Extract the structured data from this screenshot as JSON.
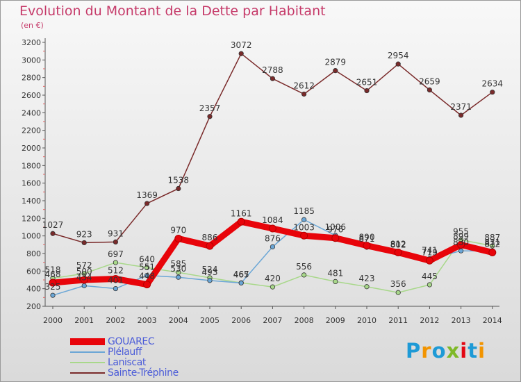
{
  "title": "Evolution du Montant de la Dette par Habitant",
  "subtitle": "(en €)",
  "logo": {
    "text": "Proxiti",
    "colors": [
      "#1e9ad6",
      "#f29400",
      "#7fb928",
      "#e30613"
    ]
  },
  "chart_data": {
    "type": "line",
    "x": [
      "2000",
      "2001",
      "2002",
      "2003",
      "2004",
      "2005",
      "2006",
      "2007",
      "2008",
      "2009",
      "2010",
      "2011",
      "2012",
      "2013",
      "2014"
    ],
    "yticks": [
      200,
      400,
      600,
      800,
      1000,
      1200,
      1400,
      1600,
      1800,
      2000,
      2200,
      2400,
      2600,
      2800,
      3000,
      3200
    ],
    "ylim": [
      200,
      3200
    ],
    "grid": false,
    "legend_position": "bottom-left",
    "series": [
      {
        "name": "Sainte-Tréphine",
        "color": "#7a2a2a",
        "width": 1.5,
        "values": [
          1027,
          923,
          931,
          1369,
          1538,
          2357,
          3072,
          2788,
          2612,
          2879,
          2651,
          2954,
          2659,
          2371,
          2634
        ],
        "labels": [
          "1027",
          "923",
          "931",
          "1369",
          "1538",
          "2357",
          "3072",
          "2788",
          "2612",
          "2879",
          "2651",
          "2954",
          "2659",
          "2371",
          "2634"
        ]
      },
      {
        "name": "Laniscat",
        "color": "#a8d88a",
        "width": 1.5,
        "values": [
          518,
          572,
          697,
          640,
          585,
          524,
          467,
          420,
          556,
          481,
          423,
          356,
          445,
          955,
          887
        ],
        "labels": [
          "518",
          "572",
          "697",
          "640",
          "585",
          "524",
          "467",
          "420",
          "556",
          "481",
          "423",
          "356",
          "445",
          "955",
          "887"
        ]
      },
      {
        "name": "Plélauff",
        "color": "#6aa6d6",
        "width": 1.5,
        "values": [
          325,
          434,
          401,
          551,
          530,
          493,
          465,
          876,
          1185,
          1006,
          871,
          802,
          741,
          830,
          831
        ],
        "labels": [
          "325",
          "434",
          "401",
          "551",
          "530",
          "493",
          "465",
          "876",
          "1185",
          "1006",
          "871",
          "802",
          "741",
          "830",
          "831"
        ]
      },
      {
        "name": "GOUAREC",
        "color": "#e8040a",
        "width": 9,
        "values": [
          468,
          500,
          512,
          448,
          970,
          886,
          1161,
          1084,
          1003,
          976,
          890,
          812,
          719,
          899,
          812
        ],
        "labels": [
          "468",
          "500",
          "512",
          "448",
          "970",
          "886",
          "1161",
          "1084",
          "1003",
          "976",
          "890",
          "812",
          "719",
          "899",
          "812"
        ]
      }
    ]
  }
}
